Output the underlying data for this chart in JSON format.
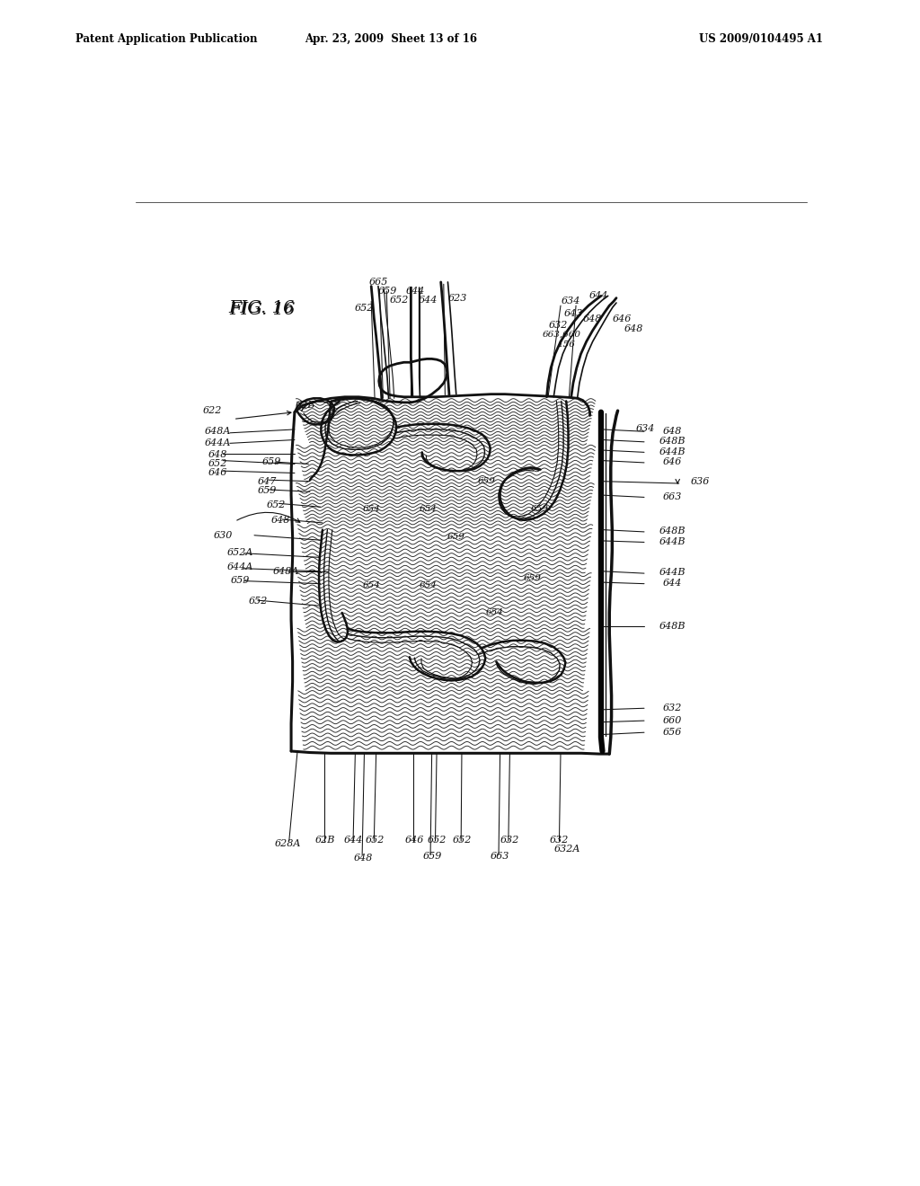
{
  "background_color": "#ffffff",
  "header_left": "Patent Application Publication",
  "header_center": "Apr. 23, 2009  Sheet 13 of 16",
  "header_right": "US 2009/0104495 A1",
  "figure_label": "FIG. 16",
  "ink": "#111111"
}
